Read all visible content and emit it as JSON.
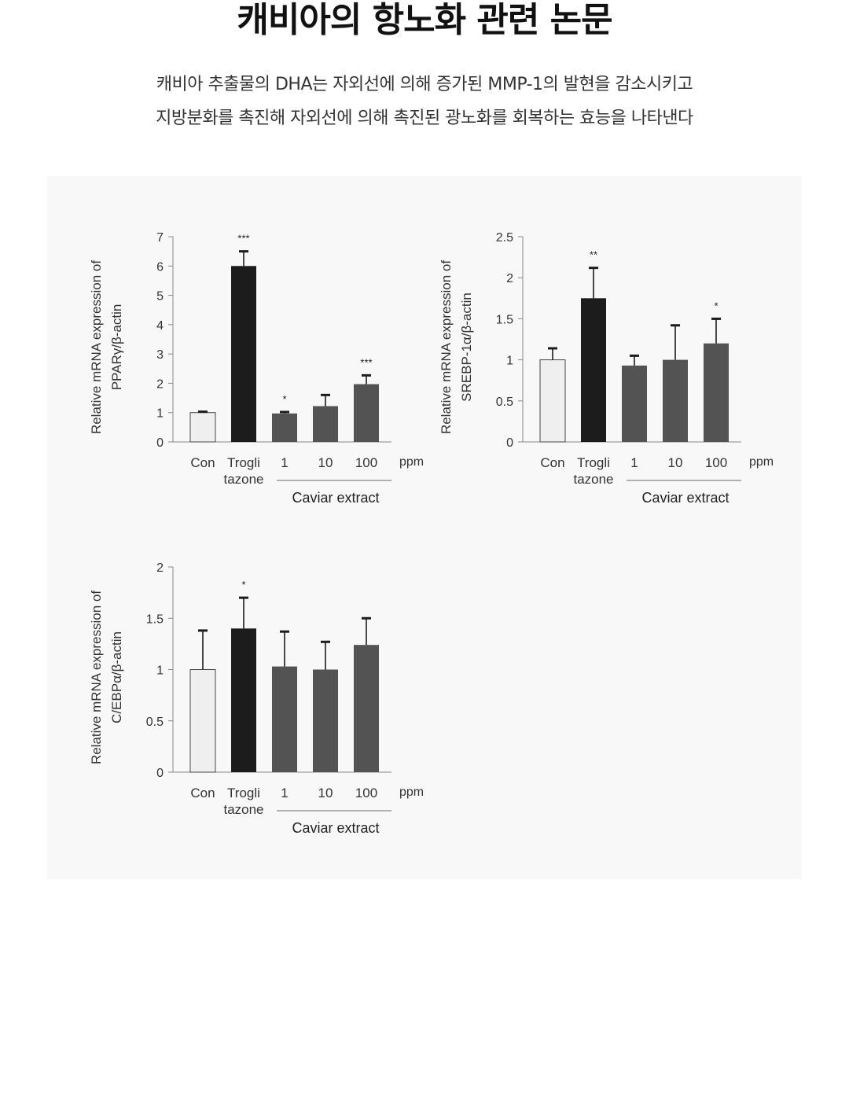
{
  "page": {
    "title": "캐비아의 항노화 관련 논문",
    "subtitle_line1": "캐비아 추출물의 DHA는 자외선에 의해 증가된 MMP-1의 발현을 감소시키고",
    "subtitle_line2": "지방분화를 촉진해 자외선에 의해 촉진된 광노화를 회복하는 효능을 나타낸다"
  },
  "colors": {
    "control": "#efefef",
    "troglitazone": "#1c1c1c",
    "caviar": "#535353",
    "axis": "#888888",
    "panel_bg": "#f8f8f8"
  },
  "chart_data": [
    {
      "type": "bar",
      "ylabel_line1": "Relative mRNA expression of",
      "ylabel_line2": "PPARγ/β-actin",
      "categories": [
        "Con",
        "Trogli tazone",
        "1",
        "10",
        "100"
      ],
      "category_labels": [
        [
          "Con"
        ],
        [
          "Trogli",
          "tazone"
        ],
        [
          "1"
        ],
        [
          "10"
        ],
        [
          "100"
        ]
      ],
      "values": [
        1.0,
        6.0,
        0.97,
        1.22,
        1.97
      ],
      "errors": [
        0.03,
        0.5,
        0.05,
        0.38,
        0.3
      ],
      "significance": [
        "",
        "***",
        "*",
        "",
        "***"
      ],
      "unit": "ppm",
      "group_label": "Caviar extract",
      "ylim": [
        0,
        7
      ],
      "yticks": [
        "0",
        "1",
        "2",
        "3",
        "4",
        "5",
        "6",
        "7"
      ],
      "ytick_values": [
        0,
        1,
        2,
        3,
        4,
        5,
        6,
        7
      ],
      "grid": false,
      "legend": "none"
    },
    {
      "type": "bar",
      "ylabel_line1": "Relative mRNA expression of",
      "ylabel_line2": "SREBP-1α/β-actin",
      "categories": [
        "Con",
        "Trogli tazone",
        "1",
        "10",
        "100"
      ],
      "category_labels": [
        [
          "Con"
        ],
        [
          "Trogli",
          "tazone"
        ],
        [
          "1"
        ],
        [
          "10"
        ],
        [
          "100"
        ]
      ],
      "values": [
        1.0,
        1.75,
        0.93,
        1.0,
        1.2
      ],
      "errors": [
        0.14,
        0.37,
        0.12,
        0.42,
        0.3
      ],
      "significance": [
        "",
        "**",
        "",
        "",
        "*"
      ],
      "unit": "ppm",
      "group_label": "Caviar extract",
      "ylim": [
        0,
        2.5
      ],
      "yticks": [
        "0",
        "0.5",
        "1",
        "1.5",
        "2",
        "2.5"
      ],
      "ytick_values": [
        0,
        0.5,
        1,
        1.5,
        2,
        2.5
      ],
      "grid": false,
      "legend": "none"
    },
    {
      "type": "bar",
      "ylabel_line1": "Relative mRNA expression of",
      "ylabel_line2": "C/EBPα/β-actin",
      "categories": [
        "Con",
        "Trogli tazone",
        "1",
        "10",
        "100"
      ],
      "category_labels": [
        [
          "Con"
        ],
        [
          "Trogli",
          "tazone"
        ],
        [
          "1"
        ],
        [
          "10"
        ],
        [
          "100"
        ]
      ],
      "values": [
        1.0,
        1.4,
        1.03,
        1.0,
        1.24
      ],
      "errors": [
        0.38,
        0.3,
        0.34,
        0.27,
        0.26
      ],
      "significance": [
        "",
        "*",
        "",
        "",
        ""
      ],
      "unit": "ppm",
      "group_label": "Caviar extract",
      "ylim": [
        0,
        2
      ],
      "yticks": [
        "0",
        "0.5",
        "1",
        "1.5",
        "2"
      ],
      "ytick_values": [
        0,
        0.5,
        1,
        1.5,
        2
      ],
      "grid": false,
      "legend": "none"
    }
  ]
}
